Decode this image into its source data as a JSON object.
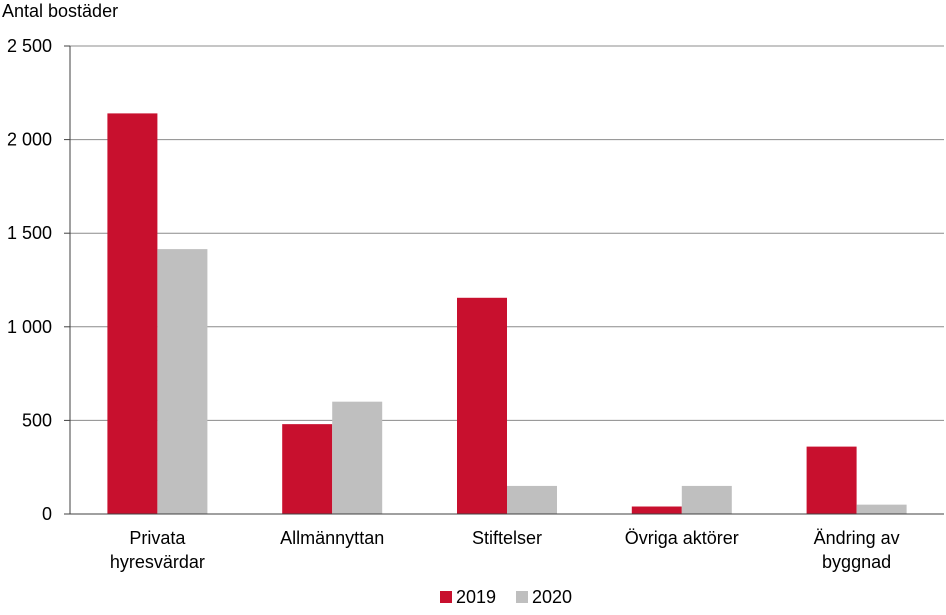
{
  "chart_data": {
    "type": "bar",
    "ylabel": "Antal bostäder",
    "categories": [
      [
        "Privata",
        "hyresvärdar"
      ],
      [
        "Allmännyttan"
      ],
      [
        "Stiftelser"
      ],
      [
        "Övriga aktörer"
      ],
      [
        "Ändring av",
        "byggnad"
      ]
    ],
    "series": [
      {
        "name": "2019",
        "color": "#c8102e",
        "values": [
          2140,
          480,
          1155,
          40,
          360
        ]
      },
      {
        "name": "2020",
        "color": "#bfbfbf",
        "values": [
          1415,
          600,
          150,
          150,
          50
        ]
      }
    ],
    "ylim": [
      0,
      2500
    ],
    "yticks": [
      0,
      500,
      1000,
      1500,
      2000,
      2500
    ],
    "ytick_labels": [
      "0",
      "500",
      "1 000",
      "1 500",
      "2 000",
      "2 500"
    ],
    "grid": true,
    "legend_position": "bottom"
  }
}
